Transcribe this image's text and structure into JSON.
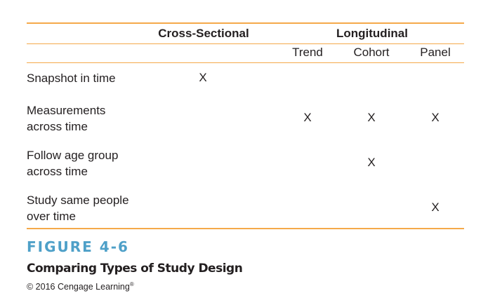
{
  "table": {
    "group_headers": {
      "cross_sectional": "Cross-Sectional",
      "longitudinal": "Longitudinal"
    },
    "sub_headers": {
      "trend": "Trend",
      "cohort": "Cohort",
      "panel": "Panel"
    },
    "rows": [
      {
        "label_line1": "Snapshot in time",
        "label_line2": "",
        "cross_sectional": "X",
        "trend": "",
        "cohort": "",
        "panel": ""
      },
      {
        "label_line1": "Measurements",
        "label_line2": "across time",
        "cross_sectional": "",
        "trend": "X",
        "cohort": "X",
        "panel": "X"
      },
      {
        "label_line1": "Follow age group",
        "label_line2": "across time",
        "cross_sectional": "",
        "trend": "",
        "cohort": "X",
        "panel": ""
      },
      {
        "label_line1": "Study same people",
        "label_line2": "over time",
        "cross_sectional": "",
        "trend": "",
        "cohort": "",
        "panel": "X"
      }
    ]
  },
  "figure": {
    "number": "FIGURE 4-6",
    "title": "Comparing Types of Study Design",
    "copyright": "© 2016 Cengage Learning",
    "registered": "®"
  },
  "colors": {
    "accent_rule": "#f5a94a",
    "figure_number": "#4ea0c8"
  }
}
